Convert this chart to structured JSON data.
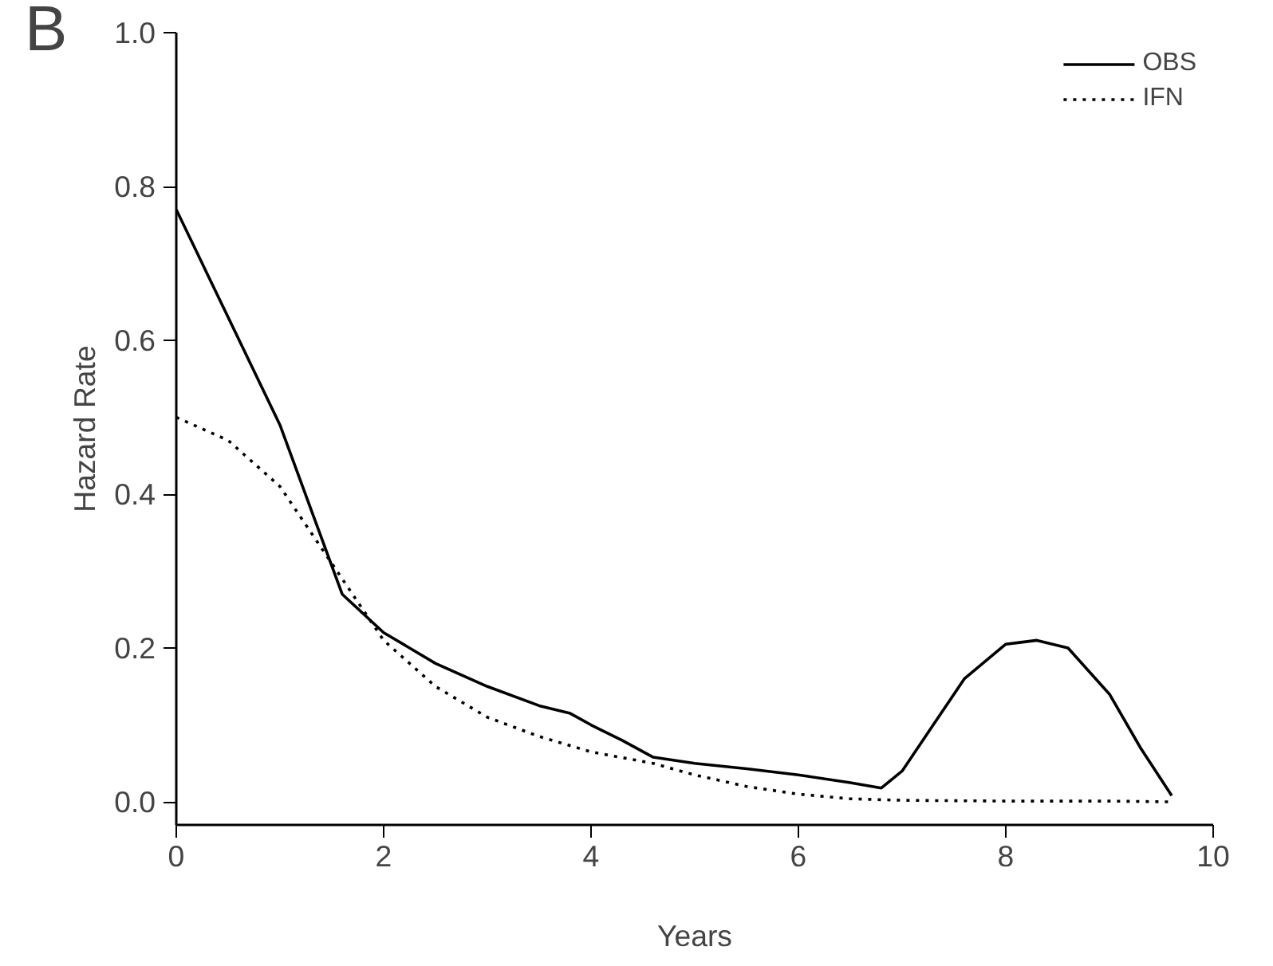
{
  "chart_data": {
    "type": "line",
    "xlabel": "Years",
    "ylabel": "Hazard Rate",
    "annotations": [
      "B"
    ],
    "xlim": [
      0,
      10
    ],
    "ylim": [
      -0.03,
      1.0
    ],
    "xticks": [
      0,
      2,
      4,
      6,
      8,
      10
    ],
    "yticks": [
      {
        "value": 0,
        "label": "0.0"
      },
      0.2,
      0.4,
      0.6,
      0.8,
      {
        "value": 1,
        "label": "1.0"
      }
    ],
    "grid": false,
    "legend": "top right",
    "series": [
      {
        "name": "OBS",
        "color": "#000000",
        "line_style": "solid",
        "x": [
          0,
          0.5,
          1,
          1.3,
          1.6,
          2,
          2.5,
          3,
          3.5,
          3.8,
          4,
          4.3,
          4.6,
          5,
          5.5,
          6,
          6.5,
          6.8,
          7,
          7.3,
          7.6,
          8,
          8.3,
          8.6,
          9,
          9.3,
          9.6
        ],
        "values": [
          0.77,
          0.63,
          0.49,
          0.38,
          0.27,
          0.22,
          0.18,
          0.15,
          0.125,
          0.115,
          0.1,
          0.08,
          0.058,
          0.05,
          0.043,
          0.035,
          0.025,
          0.018,
          0.04,
          0.1,
          0.16,
          0.205,
          0.21,
          0.2,
          0.14,
          0.07,
          0.008
        ]
      },
      {
        "name": "IFN",
        "color": "#000000",
        "line_style": "dotted",
        "x": [
          0,
          0.5,
          1,
          1.5,
          2,
          2.5,
          3,
          3.5,
          4,
          4.6,
          5,
          5.5,
          6,
          6.5,
          7,
          8,
          9,
          9.6
        ],
        "values": [
          0.5,
          0.47,
          0.41,
          0.31,
          0.21,
          0.15,
          0.11,
          0.085,
          0.065,
          0.05,
          0.035,
          0.02,
          0.01,
          0.004,
          0.002,
          0.001,
          0.001,
          0.0
        ]
      }
    ]
  }
}
